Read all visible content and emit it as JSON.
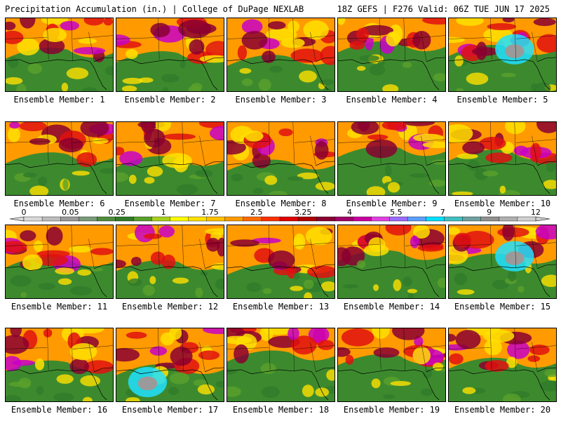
{
  "header": {
    "left": "Precipitation Accumulation (in.) | College of DuPage NEXLAB",
    "right": "18Z GEFS | F276 Valid: 06Z TUE JUN 17 2025"
  },
  "panel_label_prefix": "Ensemble Member:",
  "members": [
    1,
    2,
    3,
    4,
    5,
    6,
    7,
    8,
    9,
    10,
    11,
    12,
    13,
    14,
    15,
    16,
    17,
    18,
    19,
    20
  ],
  "colorbar": {
    "labels": [
      "0",
      "0.05",
      "0.25",
      "1",
      "1.75",
      "2.5",
      "3.25",
      "4",
      "5.5",
      "7",
      "9",
      "12"
    ],
    "colors": [
      "#d9d9d9",
      "#bdbdbd",
      "#9a9a9a",
      "#7a9a7a",
      "#4f8c3c",
      "#2f7a2a",
      "#5aa02c",
      "#a8d01c",
      "#ffff00",
      "#ffe000",
      "#ffc000",
      "#ff9a00",
      "#ff6a00",
      "#ff3000",
      "#e00000",
      "#b00000",
      "#8a0030",
      "#a0006a",
      "#c800a0",
      "#e040e0",
      "#9a6aff",
      "#5aa0ff",
      "#00e0ff",
      "#40c0c0",
      "#70a0a0",
      "#909090",
      "#b0b0b0",
      "#d0d0d0"
    ]
  },
  "legend_colors": {
    "green": "#3d8a2e",
    "yellow": "#ffe000",
    "orange": "#ff9a00",
    "red": "#e01010",
    "maroon": "#8a0030",
    "magenta": "#c800c8",
    "cyan": "#20e0ff",
    "gray": "#9a9a9a"
  }
}
